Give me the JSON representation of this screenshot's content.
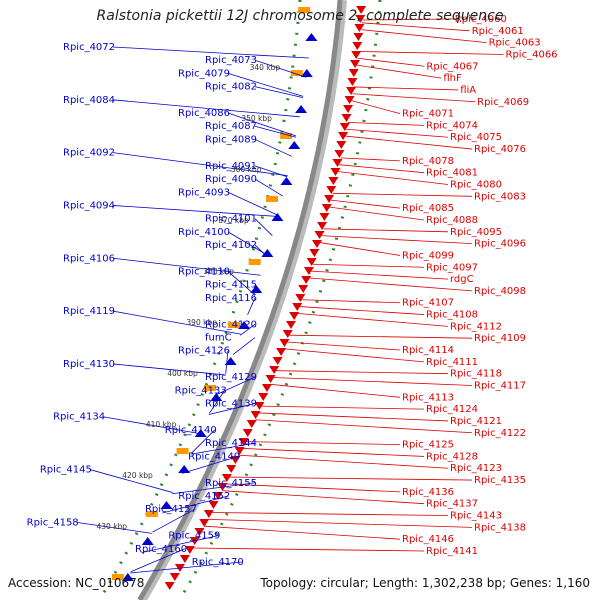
{
  "title": "Ralstonia pickettii 12J chromosome 2, complete sequence",
  "accession": "Accession: NC_010678",
  "topology": "Topology: circular; Length: 1,302,238 bp; Genes: 1,160",
  "colors": {
    "plus_strand": "#0000cc",
    "minus_strand": "#dd0000",
    "kbp_ticks": "#2a8a2a",
    "backbone": "#888888"
  },
  "scale_labels": [
    "340 kbp",
    "350 kbp",
    "360 kbp",
    "370 kbp",
    "380 kbp",
    "390 kbp",
    "400 kbp",
    "410 kbp",
    "420 kbp",
    "430 kbp"
  ],
  "left_genes": [
    "Rpic_4072",
    "Rpic_4073",
    "Rpic_4079",
    "Rpic_4082",
    "Rpic_4084",
    "Rpic_4086",
    "Rpic_4087",
    "Rpic_4089",
    "Rpic_4092",
    "Rpic_4091",
    "Rpic_4090",
    "Rpic_4093",
    "Rpic_4094",
    "Rpic_4101",
    "Rpic_4100",
    "Rpic_4102",
    "Rpic_4106",
    "Rpic_4110",
    "Rpic_4115",
    "Rpic_4116",
    "Rpic_4119",
    "Rpic_4120",
    "fumC",
    "Rpic_4126",
    "Rpic_4130",
    "Rpic_4129",
    "Rpic_4133",
    "Rpic_4139",
    "Rpic_4134",
    "Rpic_4140",
    "Rpic_4144",
    "Rpic_4149",
    "Rpic_4145",
    "Rpic_4155",
    "Rpic_4152",
    "Rpic_4157",
    "Rpic_4158",
    "Rpic_4159",
    "Rpic_4160",
    "Rpic_4170"
  ],
  "right_genes": [
    "Rpic_4060",
    "Rpic_4061",
    "Rpic_4063",
    "Rpic_4066",
    "Rpic_4067",
    "flhF",
    "fliA",
    "Rpic_4069",
    "Rpic_4071",
    "Rpic_4074",
    "Rpic_4075",
    "Rpic_4076",
    "Rpic_4078",
    "Rpic_4081",
    "Rpic_4080",
    "Rpic_4083",
    "Rpic_4085",
    "Rpic_4088",
    "Rpic_4095",
    "Rpic_4096",
    "Rpic_4099",
    "Rpic_4097",
    "rdgC",
    "Rpic_4098",
    "Rpic_4107",
    "Rpic_4108",
    "Rpic_4112",
    "Rpic_4109",
    "Rpic_4114",
    "Rpic_4111",
    "Rpic_4118",
    "Rpic_4117",
    "Rpic_4113",
    "Rpic_4124",
    "Rpic_4121",
    "Rpic_4122",
    "Rpic_4125",
    "Rpic_4128",
    "Rpic_4123",
    "Rpic_4135",
    "Rpic_4136",
    "Rpic_4137",
    "Rpic_4143",
    "Rpic_4138",
    "Rpic_4146",
    "Rpic_4141"
  ]
}
